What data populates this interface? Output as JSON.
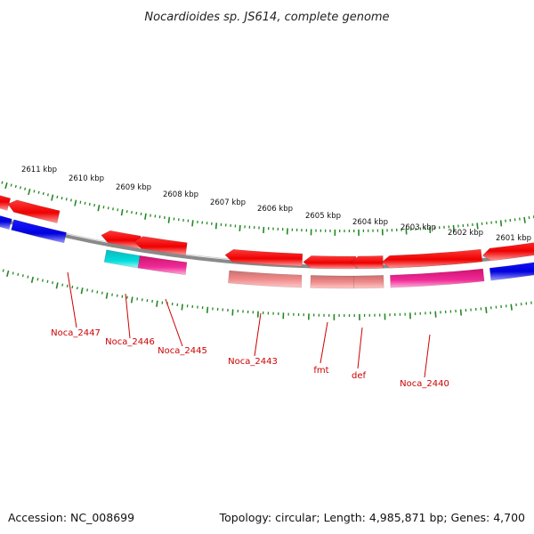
{
  "title": "Nocardioides sp. JS614, complete genome",
  "footer": {
    "accession": "Accession: NC_008699",
    "topology": "Topology: circular; Length: 4,985,871 bp; Genes: 4,700"
  },
  "scale": {
    "tick_labels": [
      "2611 kbp",
      "2610 kbp",
      "2609 kbp",
      "2608 kbp",
      "2607 kbp",
      "2606 kbp",
      "2605 kbp",
      "2604 kbp",
      "2603 kbp",
      "2602 kbp",
      "2601 kbp"
    ]
  },
  "gene_labels": [
    "Noca_2447",
    "Noca_2446",
    "Noca_2445",
    "Noca_2443",
    "fmt",
    "def",
    "Noca_2440"
  ],
  "colors": {
    "cds_strand": "#ff0000",
    "rna_like": "#f08080",
    "cog_blue": "#0000ee",
    "cog_cyan": "#00cccc",
    "cog_magenta": "#ee1188",
    "tick": "#228822",
    "backbone": "#888888",
    "label": "#cc0000"
  }
}
